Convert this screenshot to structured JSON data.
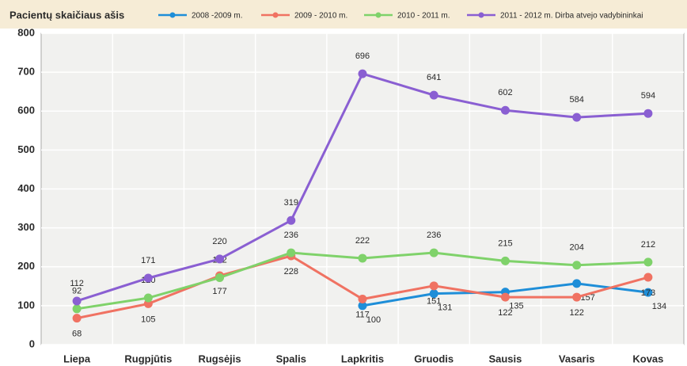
{
  "chart_data": {
    "type": "line",
    "title": "Pacientų skaičiaus ašis",
    "categories": [
      "Liepa",
      "Rugpjūtis",
      "Rugsėjis",
      "Spalis",
      "Lapkritis",
      "Gruodis",
      "Sausis",
      "Vasaris",
      "Kovas"
    ],
    "series": [
      {
        "name": "2008 -2009 m.",
        "color": "#1e8ed8",
        "values": [
          null,
          null,
          null,
          null,
          100,
          131,
          135,
          157,
          134
        ]
      },
      {
        "name": "2009 - 2010 m.",
        "color": "#f07262",
        "values": [
          68,
          105,
          177,
          228,
          117,
          151,
          122,
          122,
          173
        ]
      },
      {
        "name": "2010 - 2011 m.",
        "color": "#7fd26a",
        "values": [
          92,
          120,
          172,
          236,
          222,
          236,
          215,
          204,
          212
        ]
      },
      {
        "name": "2011 - 2012 m. Dirba atvejo vadybininkai",
        "color": "#8a5fd2",
        "values": [
          112,
          171,
          220,
          319,
          696,
          641,
          602,
          584,
          594
        ]
      }
    ],
    "ylim": [
      0,
      800
    ],
    "yticks": [
      0,
      100,
      200,
      300,
      400,
      500,
      600,
      700,
      800
    ],
    "grid": true,
    "legend": "top"
  }
}
